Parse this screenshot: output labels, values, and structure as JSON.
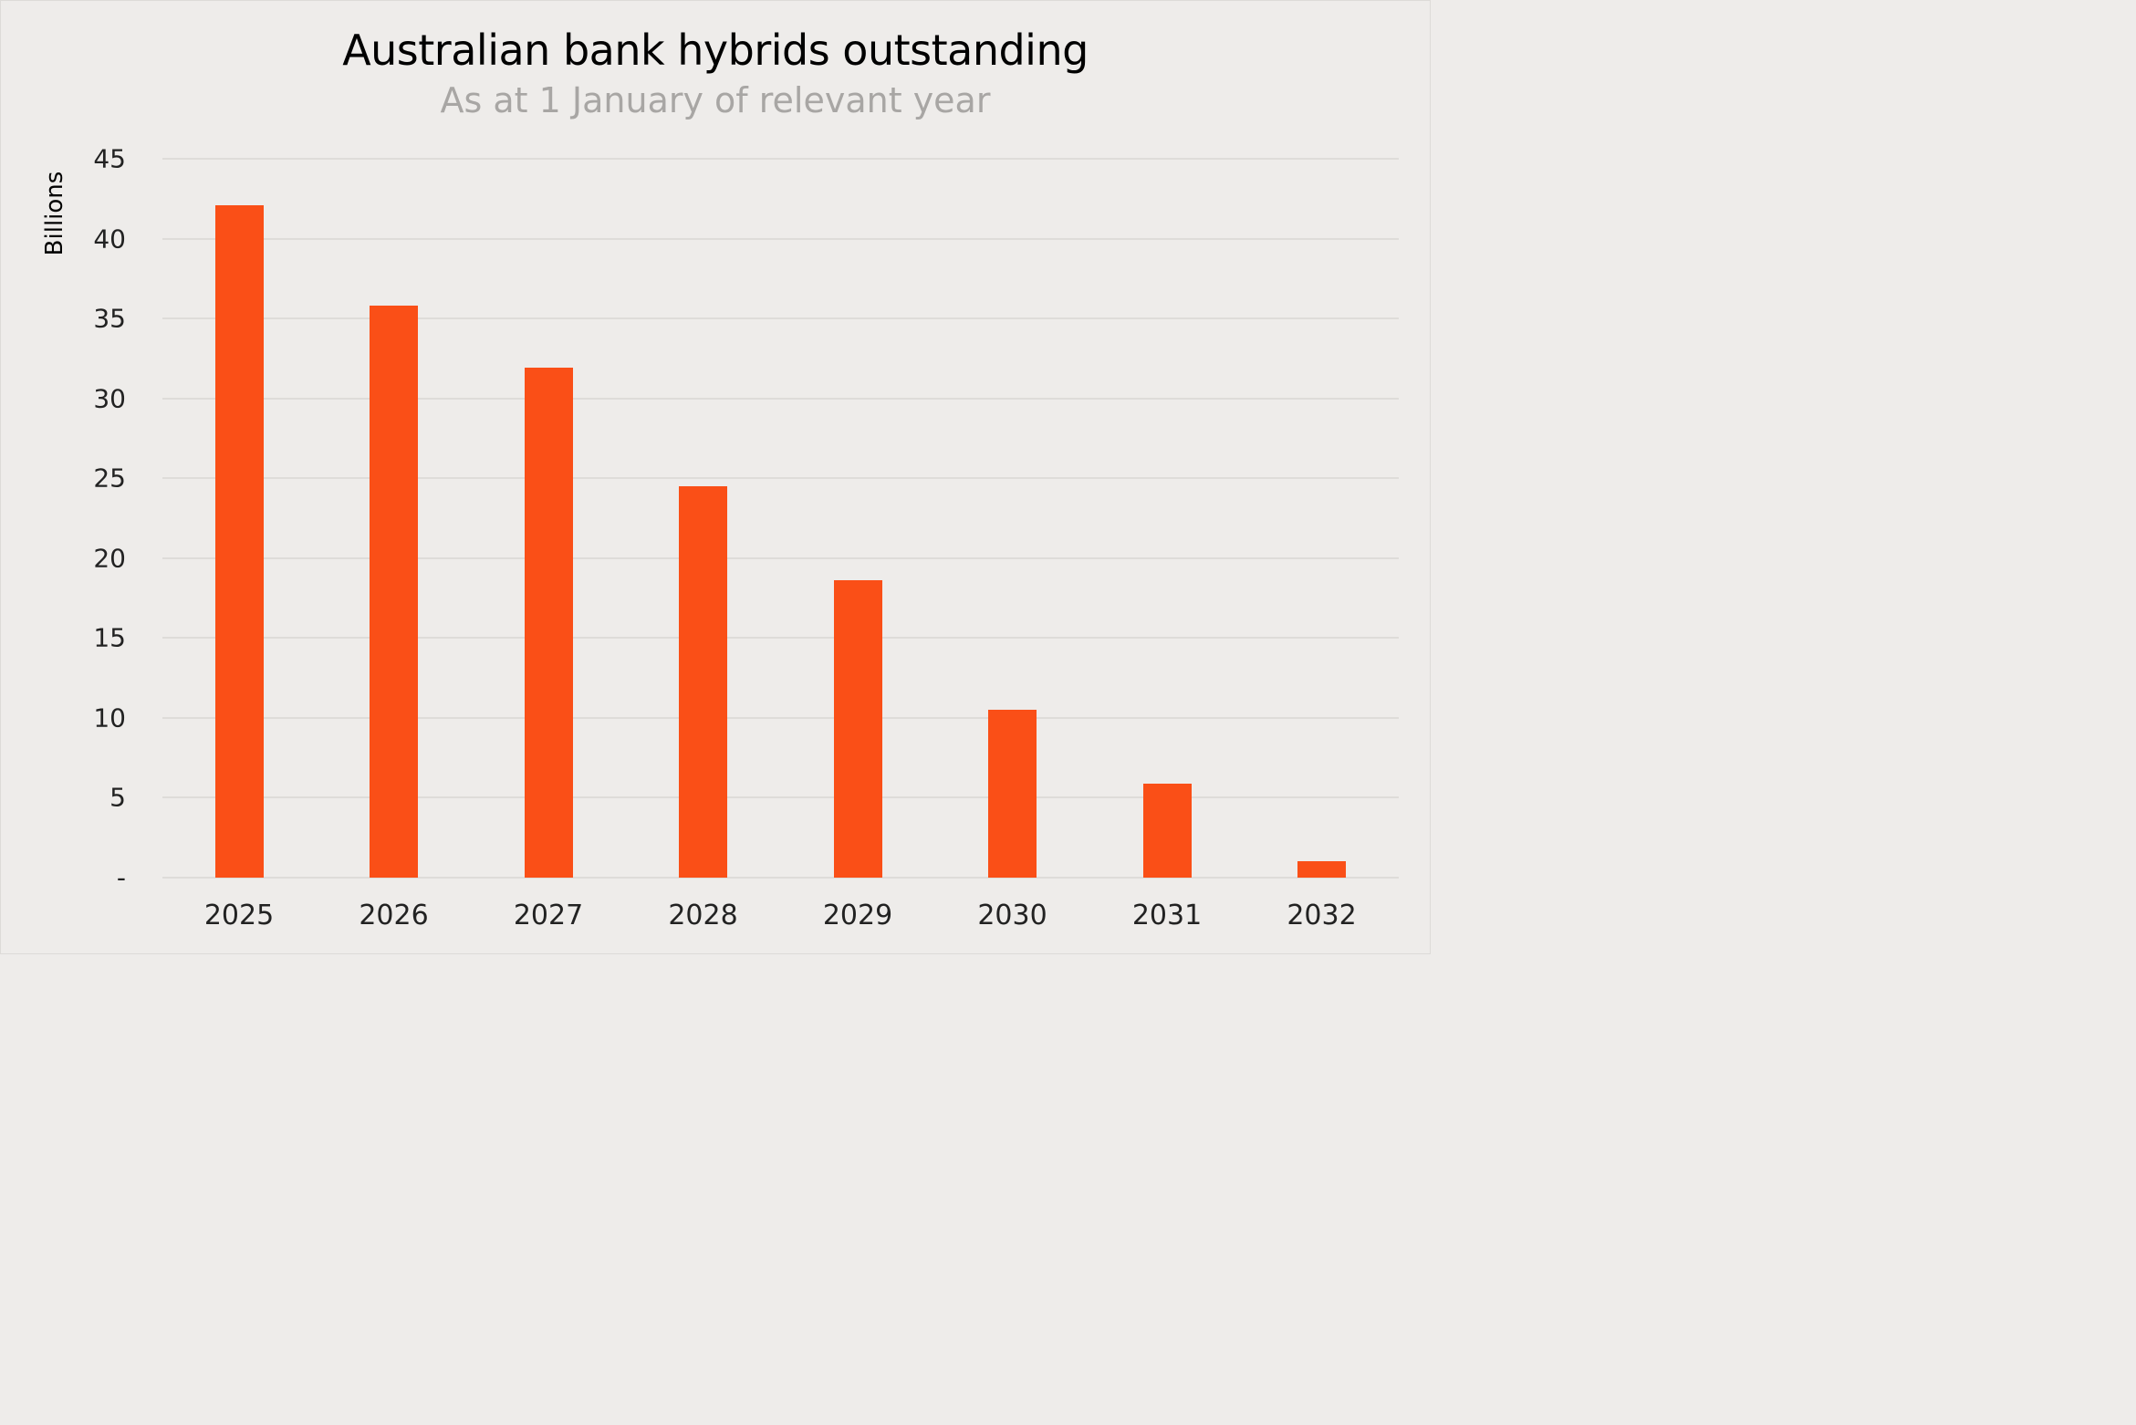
{
  "chart_data": {
    "type": "bar",
    "title": "Australian bank hybrids outstanding",
    "subtitle": "As at 1 January of relevant year",
    "xlabel": "",
    "ylabel": "Billions",
    "categories": [
      "2025",
      "2026",
      "2027",
      "2028",
      "2029",
      "2030",
      "2031",
      "2032"
    ],
    "values": [
      42.1,
      35.8,
      31.9,
      24.5,
      18.6,
      10.5,
      5.9,
      1.0
    ],
    "ylim": [
      0,
      45
    ],
    "yticks": [
      "-",
      "5",
      "10",
      "15",
      "20",
      "25",
      "30",
      "35",
      "40",
      "45"
    ],
    "grid": true,
    "legend": null,
    "bar_color": "#fa4f17"
  }
}
